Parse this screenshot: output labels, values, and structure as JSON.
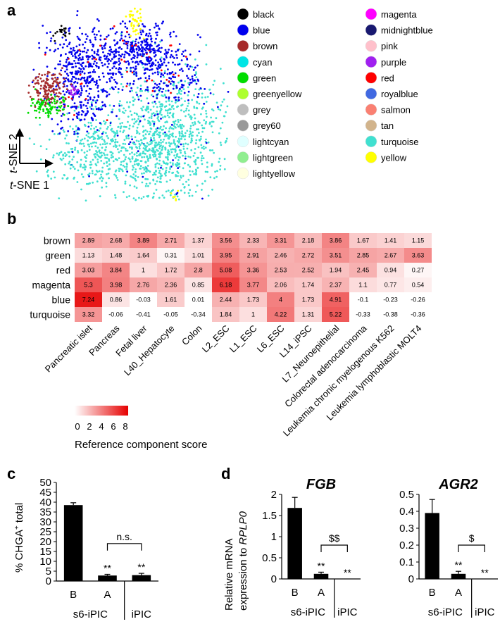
{
  "panels": {
    "a": "a",
    "b": "b",
    "c": "c",
    "d": "d"
  },
  "tsne": {
    "axis_y_label": "t-SNE 2",
    "axis_x_label": "t-SNE 1",
    "axis_prefix": "t",
    "axis_y_suffix": "-SNE 2",
    "axis_x_suffix": "-SNE 1"
  },
  "legend_a": {
    "col1": [
      {
        "label": "black",
        "color": "#000000"
      },
      {
        "label": "blue",
        "color": "#0000ee"
      },
      {
        "label": "brown",
        "color": "#a52a2a"
      },
      {
        "label": "cyan",
        "color": "#00e5e5"
      },
      {
        "label": "green",
        "color": "#00dd00"
      },
      {
        "label": "greenyellow",
        "color": "#adff2f"
      },
      {
        "label": "grey",
        "color": "#bebebe"
      },
      {
        "label": "grey60",
        "color": "#999999"
      },
      {
        "label": "lightcyan",
        "color": "#e0ffff"
      },
      {
        "label": "lightgreen",
        "color": "#90ee90"
      },
      {
        "label": "lightyellow",
        "color": "#ffffe0"
      }
    ],
    "col2": [
      {
        "label": "magenta",
        "color": "#ff00ff"
      },
      {
        "label": "midnightblue",
        "color": "#191970"
      },
      {
        "label": "pink",
        "color": "#ffc0cb"
      },
      {
        "label": "purple",
        "color": "#a020f0"
      },
      {
        "label": "red",
        "color": "#ff0000"
      },
      {
        "label": "royalblue",
        "color": "#4169e1"
      },
      {
        "label": "salmon",
        "color": "#fa8072"
      },
      {
        "label": "tan",
        "color": "#d2b48c"
      },
      {
        "label": "turquoise",
        "color": "#40e0d0"
      },
      {
        "label": "yellow",
        "color": "#ffff00"
      }
    ]
  },
  "heatmap": {
    "rows": [
      "brown",
      "green",
      "red",
      "magenta",
      "blue",
      "turquoise"
    ],
    "cols": [
      "Pancreatic islet",
      "Pancreas",
      "Fetal liver",
      "L40_Hepatocyte",
      "Colon",
      "L2_ESC",
      "L1_ESC",
      "L6_ESC",
      "L14_iPSC",
      "L7_Neuroepithelial",
      "Colorectal adenocarcinoma",
      "Leukemia chronic myelogenous K562",
      "Leukemia lymphoblastic MOLT4"
    ],
    "values": [
      [
        "2.89",
        "2.68",
        "3.89",
        "2.71",
        "1.37",
        "3.56",
        "2.33",
        "3.31",
        "2.18",
        "3.86",
        "1.67",
        "1.41",
        "1.15"
      ],
      [
        "1.13",
        "1.48",
        "1.64",
        "0.31",
        "1.01",
        "3.95",
        "2.91",
        "2.46",
        "2.72",
        "3.51",
        "2.85",
        "2.67",
        "3.63"
      ],
      [
        "3.03",
        "3.84",
        "1",
        "1.72",
        "2.8",
        "5.08",
        "3.36",
        "2.53",
        "2.52",
        "1.94",
        "2.45",
        "0.94",
        "0.27"
      ],
      [
        "5.3",
        "3.98",
        "2.76",
        "2.36",
        "0.85",
        "6.18",
        "3.77",
        "2.06",
        "1.74",
        "2.37",
        "1.1",
        "0.77",
        "0.54"
      ],
      [
        "7.24",
        "0.86",
        "-0.03",
        "1.61",
        "0.01",
        "2.44",
        "1.73",
        "4",
        "1.73",
        "4.91",
        "-0.1",
        "-0.23",
        "-0.26"
      ],
      [
        "3.32",
        "-0.06",
        "-0.41",
        "-0.05",
        "-0.34",
        "1.84",
        "1",
        "4.22",
        "1.31",
        "5.22",
        "-0.33",
        "-0.38",
        "-0.36"
      ]
    ],
    "scale_ticks": [
      "0",
      "2",
      "4",
      "6",
      "8"
    ],
    "scale_label": "Reference component score"
  },
  "chart_data": [
    {
      "type": "bar",
      "panel": "c",
      "ylabel": "% CHGA⁺ total",
      "ylabel_main": "% CHGA",
      "ylabel_sup": "+",
      "ylabel_tail": " total",
      "ylim": [
        0,
        50
      ],
      "yticks": [
        "0",
        "5",
        "10",
        "15",
        "20",
        "25",
        "30",
        "35",
        "40",
        "45",
        "50"
      ],
      "categories": [
        "B",
        "A",
        ""
      ],
      "values": [
        38.5,
        2.8,
        3.0
      ],
      "errors": [
        1.2,
        0.6,
        0.9
      ],
      "stars": [
        "",
        "**",
        "**"
      ],
      "bracket_label": "n.s.",
      "groups": [
        "s6-iPIC",
        "iPIC"
      ]
    },
    {
      "type": "bar",
      "panel": "d",
      "title": "FGB",
      "ylabel_line1": "Relative mRNA",
      "ylabel_line2_prefix": "expression to ",
      "ylabel_line2_gene": "RPLP0",
      "ylim": [
        0,
        2
      ],
      "yticks": [
        "0",
        "0.5",
        "1",
        "1.5",
        "2"
      ],
      "categories": [
        "B",
        "A",
        ""
      ],
      "values": [
        1.68,
        0.12,
        0
      ],
      "errors": [
        0.25,
        0.04,
        0
      ],
      "stars": [
        "",
        "**",
        "**"
      ],
      "bracket_label": "$$",
      "groups": [
        "s6-iPIC",
        "iPIC"
      ]
    },
    {
      "type": "bar",
      "panel": "d",
      "title": "AGR2",
      "ylim": [
        0,
        0.5
      ],
      "yticks": [
        "0",
        "0.1",
        "0.2",
        "0.3",
        "0.4",
        "0.5"
      ],
      "categories": [
        "B",
        "A",
        ""
      ],
      "values": [
        0.39,
        0.03,
        0
      ],
      "errors": [
        0.08,
        0.015,
        0
      ],
      "stars": [
        "",
        "**",
        "**"
      ],
      "bracket_label": "$",
      "groups": [
        "s6-iPIC",
        "iPIC"
      ]
    }
  ]
}
